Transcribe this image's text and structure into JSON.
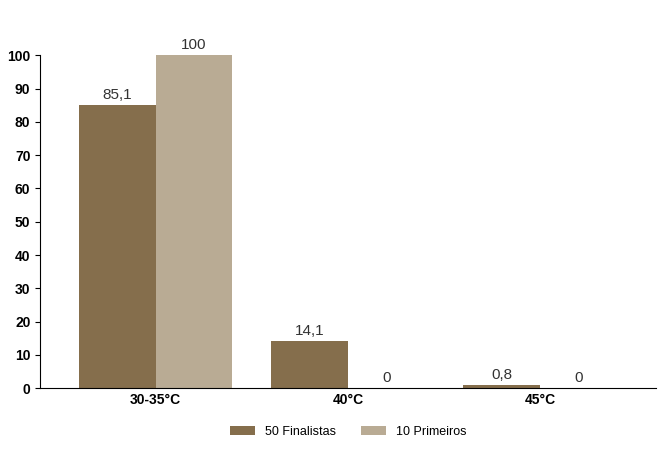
{
  "chart_data": {
    "type": "bar",
    "categories": [
      "30-35°C",
      "40°C",
      "45°C"
    ],
    "series": [
      {
        "name": "50 Finalistas",
        "color": "#856e4c",
        "values": [
          85.1,
          14.1,
          0.8
        ],
        "value_labels": [
          "85,1",
          "14,1",
          "0,8"
        ]
      },
      {
        "name": "10 Primeiros",
        "color": "#b9ab94",
        "values": [
          100,
          0,
          0
        ],
        "value_labels": [
          "100",
          "0",
          "0"
        ]
      }
    ],
    "ylim": [
      0,
      100
    ],
    "yticks": [
      0,
      10,
      20,
      30,
      40,
      50,
      60,
      70,
      80,
      90,
      100
    ],
    "grid": false,
    "legend": "bottom",
    "data_labels": true
  }
}
